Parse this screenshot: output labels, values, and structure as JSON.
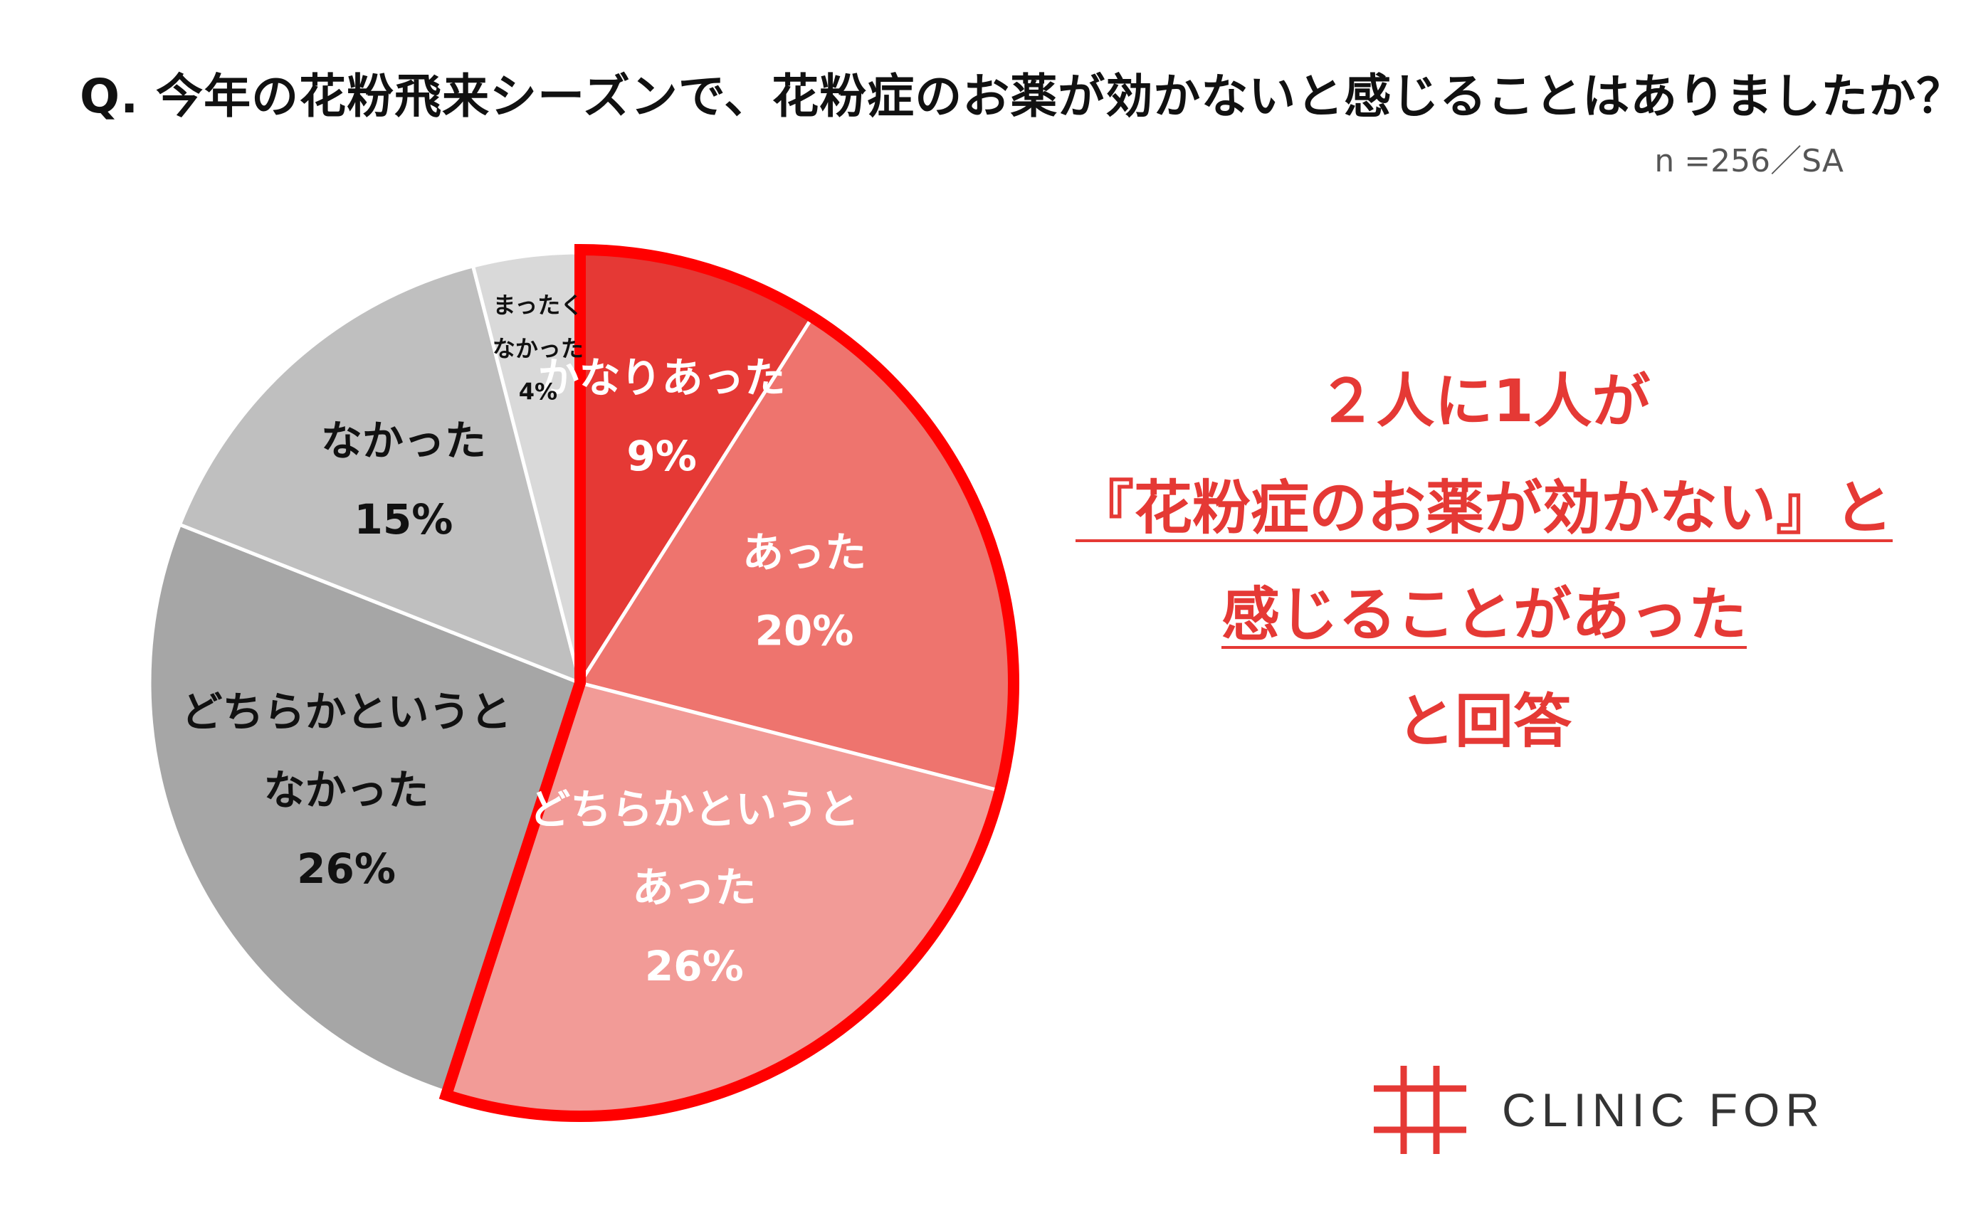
{
  "question": "Q.  今年の花粉飛来シーズンで、花粉症のお薬が効かないと感じることはありましたか？",
  "sample_note": "n =256／SA",
  "chart_data": {
    "type": "pie",
    "start_angle_deg": 0,
    "direction": "clockwise",
    "slices": [
      {
        "label_lines": [
          "かなりあった"
        ],
        "value": 9,
        "display": "9%",
        "color": "#e53935",
        "text_color": "#ffffff",
        "highlighted": true
      },
      {
        "label_lines": [
          "あった"
        ],
        "value": 20,
        "display": "20%",
        "color": "#ee746e",
        "text_color": "#ffffff",
        "highlighted": true
      },
      {
        "label_lines": [
          "どちらかというと",
          "あった"
        ],
        "value": 26,
        "display": "26%",
        "color": "#f29b97",
        "text_color": "#ffffff",
        "highlighted": true
      },
      {
        "label_lines": [
          "どちらかというと",
          "なかった"
        ],
        "value": 26,
        "display": "26%",
        "color": "#a6a6a6",
        "text_color": "#111111",
        "highlighted": false
      },
      {
        "label_lines": [
          "なかった"
        ],
        "value": 15,
        "display": "15%",
        "color": "#bfbfbf",
        "text_color": "#111111",
        "highlighted": false
      },
      {
        "label_lines": [
          "まったく",
          "なかった"
        ],
        "value": 4,
        "display": "4%",
        "color": "#d9d9d9",
        "text_color": "#111111",
        "highlighted": false
      }
    ],
    "highlight_color": "#ff0000"
  },
  "callout": {
    "line1": "２人に1人が",
    "line2": "『花粉症のお薬が効かない』と",
    "line3": "感じることがあった",
    "line4": "と回答"
  },
  "logo": {
    "text": "CLINIC FOR",
    "mark_color": "#e53935"
  }
}
